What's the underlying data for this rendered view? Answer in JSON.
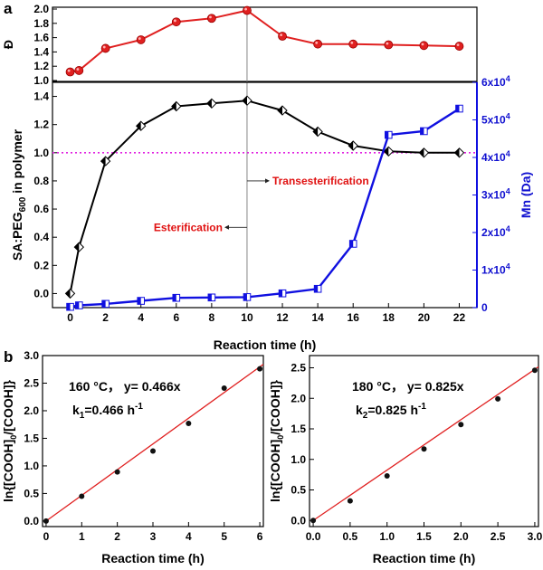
{
  "chart_data": [
    {
      "panel": "a",
      "id": "dispersity",
      "type": "line",
      "ylabel": "Đ",
      "x": [
        0,
        0.5,
        2,
        4,
        6,
        8,
        10,
        12,
        14,
        16,
        18,
        20,
        22
      ],
      "ylim": [
        1.0,
        2.0
      ],
      "yticks": [
        "1.0",
        "1.2",
        "1.4",
        "1.6",
        "1.8",
        "2.0"
      ],
      "series": [
        {
          "values": [
            1.12,
            1.14,
            1.45,
            1.57,
            1.82,
            1.87,
            1.98,
            1.62,
            1.51,
            1.51,
            1.5,
            1.49,
            1.48
          ],
          "color": "#e02020",
          "marker": "circle"
        }
      ]
    },
    {
      "panel": "a",
      "id": "ratio-mn",
      "type": "line",
      "xlabel": "Reaction time (h)",
      "ylabel_parts": [
        "SA:PEG",
        "600",
        " in polymer"
      ],
      "y2label": "Mn (Da)",
      "xlim": [
        -1,
        23
      ],
      "xticks": [
        "0",
        "2",
        "4",
        "6",
        "8",
        "10",
        "12",
        "14",
        "16",
        "18",
        "20",
        "22"
      ],
      "ylim": [
        -0.1,
        1.5
      ],
      "yticks": [
        "0.0",
        "0.2",
        "0.4",
        "0.6",
        "0.8",
        "1.0",
        "1.2",
        "1.4"
      ],
      "y2lim": [
        0,
        60000
      ],
      "y2ticks": [
        {
          "base": "0",
          "exp": ""
        },
        {
          "base": "1x10",
          "exp": "4"
        },
        {
          "base": "2x10",
          "exp": "4"
        },
        {
          "base": "3x10",
          "exp": "4"
        },
        {
          "base": "4x10",
          "exp": "4"
        },
        {
          "base": "5x10",
          "exp": "4"
        },
        {
          "base": "6x10",
          "exp": "4"
        }
      ],
      "x": [
        0,
        0.5,
        2,
        4,
        6,
        8,
        10,
        12,
        14,
        16,
        18,
        20,
        22
      ],
      "series": [
        {
          "axis": "left",
          "values": [
            0.0,
            0.33,
            0.94,
            1.19,
            1.33,
            1.35,
            1.37,
            1.3,
            1.15,
            1.05,
            1.01,
            1.0,
            1.0
          ],
          "color": "#000000",
          "marker": "diamond"
        },
        {
          "axis": "right",
          "values": [
            200,
            600,
            1000,
            1800,
            2600,
            2700,
            2800,
            3800,
            5000,
            17000,
            46000,
            47000,
            53000
          ],
          "color": "#1010e0",
          "marker": "square"
        }
      ],
      "reference_line": {
        "y": 1.0,
        "color": "#e020e0",
        "style": "dotted"
      },
      "vline_x": 10,
      "annotations": [
        {
          "text": "Esterification",
          "arrow": "left"
        },
        {
          "text": "Transesterification",
          "arrow": "right"
        }
      ]
    },
    {
      "panel": "b",
      "id": "kinetics-160",
      "type": "scatter",
      "xlabel": "Reaction time (h)",
      "ylabel_parts": [
        "ln{[COOH]",
        "0",
        "/[COOH]}"
      ],
      "xlim": [
        -0.1,
        6.1
      ],
      "xticks": [
        "0",
        "1",
        "2",
        "3",
        "4",
        "5",
        "6"
      ],
      "ylim": [
        -0.1,
        3.0
      ],
      "yticks": [
        "0.0",
        "0.5",
        "1.0",
        "1.5",
        "2.0",
        "2.5",
        "3.0"
      ],
      "x": [
        0,
        1,
        2,
        3,
        4,
        5,
        6
      ],
      "y": [
        0.0,
        0.45,
        0.89,
        1.27,
        1.77,
        2.41,
        2.76
      ],
      "fit": {
        "slope": 0.466,
        "color": "#e02020"
      },
      "equation": "160 °C，  y= 0.466x",
      "rate_label": {
        "k": "k",
        "sub": "1",
        "text": "=0.466 h",
        "exp": "-1"
      }
    },
    {
      "panel": "b",
      "id": "kinetics-180",
      "type": "scatter",
      "xlabel": "Reaction time (h)",
      "ylabel_parts": [
        "ln{[COOH]",
        "0",
        "/[COOH]}"
      ],
      "xlim": [
        -0.05,
        3.05
      ],
      "xticks": [
        "0.0",
        "0.5",
        "1.0",
        "1.5",
        "2.0",
        "2.5",
        "3.0"
      ],
      "ylim": [
        -0.1,
        2.7
      ],
      "yticks": [
        "0.0",
        "0.5",
        "1.0",
        "1.5",
        "2.0",
        "2.5"
      ],
      "x": [
        0,
        0.5,
        1.0,
        1.5,
        2.0,
        2.5,
        3.0
      ],
      "y": [
        0.0,
        0.32,
        0.73,
        1.17,
        1.57,
        1.99,
        2.46
      ],
      "fit": {
        "slope": 0.825,
        "color": "#e02020"
      },
      "equation": "180 °C，  y= 0.825x",
      "rate_label": {
        "k": "k",
        "sub": "2",
        "text": "=0.825 h",
        "exp": "-1"
      }
    }
  ]
}
